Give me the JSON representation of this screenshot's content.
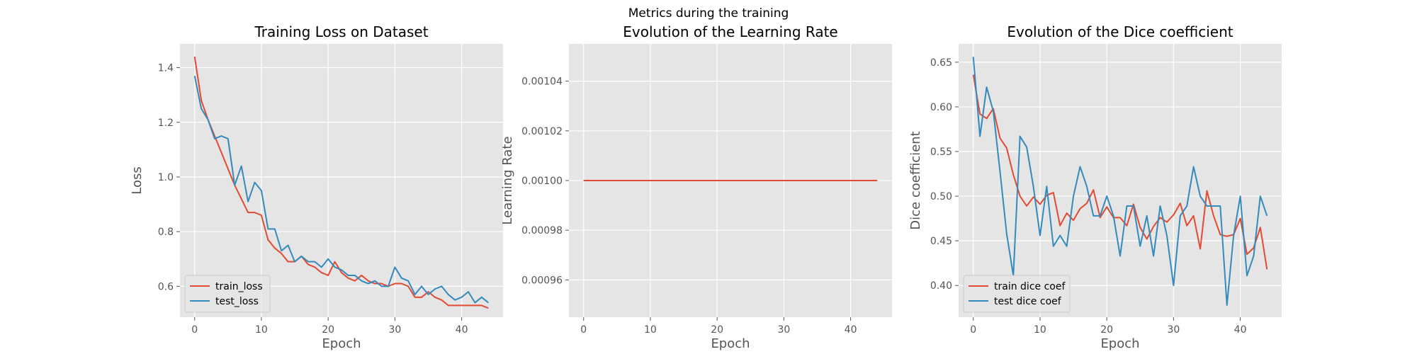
{
  "figure": {
    "suptitle": "Metrics during the training"
  },
  "chart_data": [
    {
      "type": "line",
      "title": "Training Loss on Dataset",
      "xlabel": "Epoch",
      "ylabel": "Loss",
      "xlim": [
        -2.2,
        46.2
      ],
      "ylim": [
        0.487,
        1.487
      ],
      "xticks": [
        0,
        10,
        20,
        30,
        40
      ],
      "yticks": [
        0.6,
        0.8,
        1.0,
        1.2,
        1.4
      ],
      "ytick_labels": [
        "0.6",
        "0.8",
        "1.0",
        "1.2",
        "1.4"
      ],
      "grid": true,
      "legend": "lower-left",
      "x": [
        0,
        1,
        2,
        3,
        4,
        5,
        6,
        7,
        8,
        9,
        10,
        11,
        12,
        13,
        14,
        15,
        16,
        17,
        18,
        19,
        20,
        21,
        22,
        23,
        24,
        25,
        26,
        27,
        28,
        29,
        30,
        31,
        32,
        33,
        34,
        35,
        36,
        37,
        38,
        39,
        40,
        41,
        42,
        43,
        44
      ],
      "series": [
        {
          "name": "train_loss",
          "color": "#E24A33",
          "values": [
            1.44,
            1.28,
            1.21,
            1.15,
            1.09,
            1.03,
            0.97,
            0.92,
            0.87,
            0.87,
            0.86,
            0.77,
            0.74,
            0.72,
            0.69,
            0.69,
            0.71,
            0.68,
            0.67,
            0.65,
            0.64,
            0.69,
            0.65,
            0.63,
            0.62,
            0.64,
            0.62,
            0.61,
            0.61,
            0.6,
            0.61,
            0.61,
            0.6,
            0.56,
            0.56,
            0.58,
            0.56,
            0.55,
            0.53,
            0.53,
            0.53,
            0.53,
            0.53,
            0.53,
            0.52
          ]
        },
        {
          "name": "test_loss",
          "color": "#348ABD",
          "values": [
            1.37,
            1.25,
            1.21,
            1.14,
            1.15,
            1.14,
            0.97,
            1.04,
            0.91,
            0.98,
            0.95,
            0.81,
            0.81,
            0.73,
            0.75,
            0.69,
            0.71,
            0.69,
            0.69,
            0.67,
            0.7,
            0.67,
            0.66,
            0.64,
            0.64,
            0.62,
            0.61,
            0.62,
            0.6,
            0.6,
            0.67,
            0.63,
            0.62,
            0.57,
            0.6,
            0.57,
            0.59,
            0.6,
            0.57,
            0.55,
            0.56,
            0.58,
            0.54,
            0.56,
            0.54
          ]
        }
      ]
    },
    {
      "type": "line",
      "title": "Evolution of the Learning Rate",
      "xlabel": "Epoch",
      "ylabel": "Learning Rate",
      "xlim": [
        -2.2,
        46.2
      ],
      "ylim": [
        0.000945,
        0.001055
      ],
      "xticks": [
        0,
        10,
        20,
        30,
        40
      ],
      "yticks": [
        0.00096,
        0.00098,
        0.001,
        0.00102,
        0.00104
      ],
      "ytick_labels": [
        "0.00096",
        "0.00098",
        "0.00100",
        "0.00102",
        "0.00104"
      ],
      "grid": true,
      "x": [
        0,
        44
      ],
      "series": [
        {
          "color": "#E24A33",
          "values": [
            0.001,
            0.001
          ]
        }
      ]
    },
    {
      "type": "line",
      "title": "Evolution of the Dice coefficient",
      "xlabel": "Epoch",
      "ylabel": "Dice coefficient",
      "xlim": [
        -2.2,
        46.2
      ],
      "ylim": [
        0.3645,
        0.6705
      ],
      "xticks": [
        0,
        10,
        20,
        30,
        40
      ],
      "yticks": [
        0.4,
        0.45,
        0.5,
        0.55,
        0.6,
        0.65
      ],
      "ytick_labels": [
        "0.40",
        "0.45",
        "0.50",
        "0.55",
        "0.60",
        "0.65"
      ],
      "grid": true,
      "legend": "lower-left",
      "x": [
        0,
        1,
        2,
        3,
        4,
        5,
        6,
        7,
        8,
        9,
        10,
        11,
        12,
        13,
        14,
        15,
        16,
        17,
        18,
        19,
        20,
        21,
        22,
        23,
        24,
        25,
        26,
        27,
        28,
        29,
        30,
        31,
        32,
        33,
        34,
        35,
        36,
        37,
        38,
        39,
        40,
        41,
        42,
        43,
        44
      ],
      "series": [
        {
          "name": "train dice coef",
          "color": "#E24A33",
          "values": [
            0.636,
            0.592,
            0.587,
            0.598,
            0.565,
            0.554,
            0.524,
            0.5,
            0.489,
            0.499,
            0.491,
            0.501,
            0.504,
            0.467,
            0.481,
            0.473,
            0.486,
            0.492,
            0.507,
            0.476,
            0.488,
            0.476,
            0.476,
            0.467,
            0.491,
            0.465,
            0.452,
            0.466,
            0.476,
            0.471,
            0.479,
            0.492,
            0.467,
            0.478,
            0.441,
            0.506,
            0.478,
            0.457,
            0.455,
            0.457,
            0.475,
            0.435,
            0.442,
            0.465,
            0.418
          ]
        },
        {
          "name": "test dice coef",
          "color": "#348ABD",
          "values": [
            0.656,
            0.567,
            0.622,
            0.595,
            0.528,
            0.458,
            0.411,
            0.567,
            0.555,
            0.511,
            0.456,
            0.511,
            0.444,
            0.456,
            0.444,
            0.5,
            0.533,
            0.511,
            0.478,
            0.478,
            0.5,
            0.478,
            0.433,
            0.489,
            0.489,
            0.444,
            0.478,
            0.433,
            0.489,
            0.456,
            0.4,
            0.478,
            0.489,
            0.533,
            0.5,
            0.489,
            0.489,
            0.489,
            0.378,
            0.456,
            0.5,
            0.411,
            0.433,
            0.5,
            0.478
          ]
        }
      ]
    }
  ]
}
